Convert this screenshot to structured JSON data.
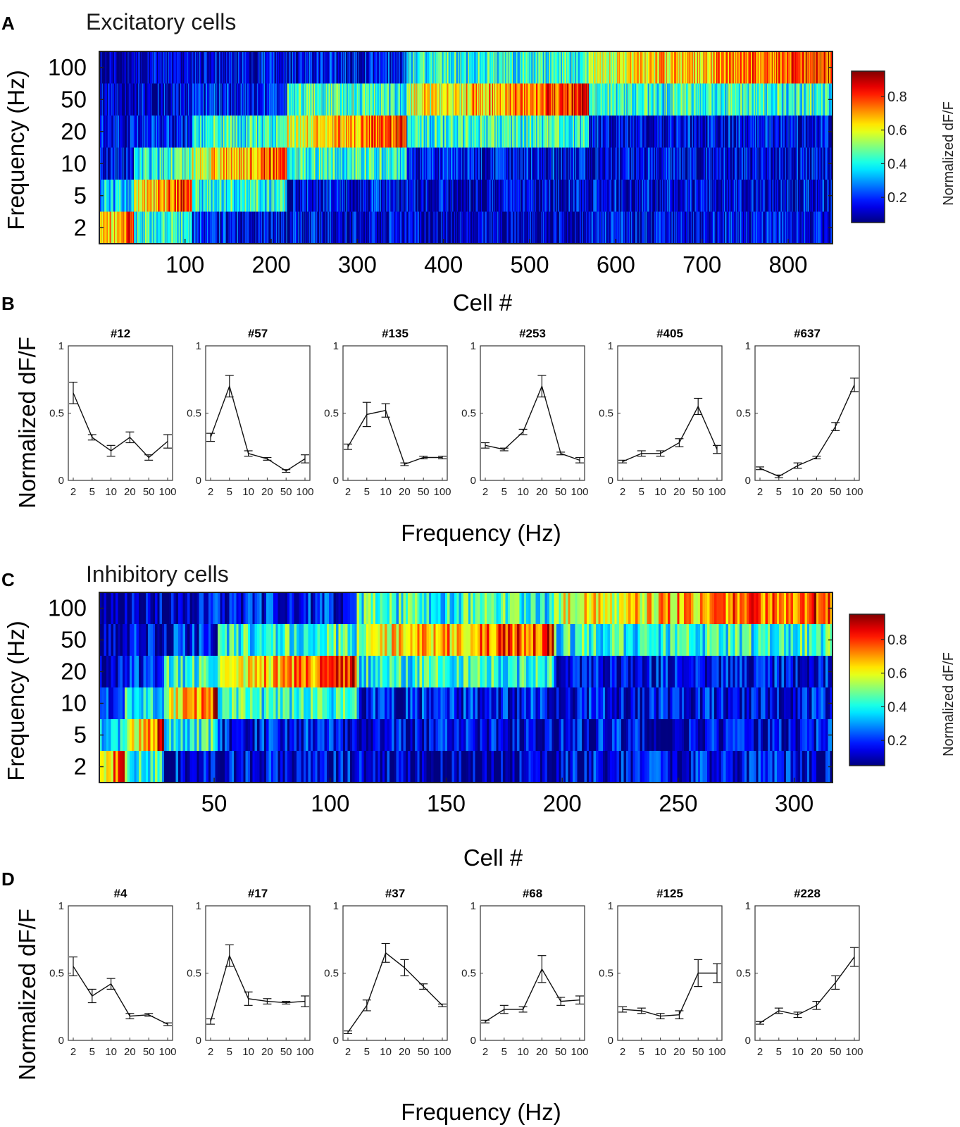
{
  "figure": {
    "panel_labels": [
      "A",
      "B",
      "C",
      "D"
    ]
  },
  "chart_data": [
    {
      "type": "heatmap",
      "panel": "A",
      "title": "Excitatory cells",
      "xlabel": "Cell #",
      "ylabel": "Frequency (Hz)",
      "n_cells": 851,
      "x_ticks": [
        100,
        200,
        300,
        400,
        500,
        600,
        700,
        800
      ],
      "y_categories": [
        "100",
        "50",
        "20",
        "10",
        "5",
        "2"
      ],
      "colorbar_label": "Normalized dF/F",
      "colorbar_ticks": [
        0.2,
        0.4,
        0.6,
        0.8
      ],
      "clim": [
        0.05,
        0.95
      ],
      "preferred_blocks": [
        {
          "pref": "2",
          "from": 1,
          "to": 40
        },
        {
          "pref": "5",
          "from": 41,
          "to": 108
        },
        {
          "pref": "10",
          "from": 109,
          "to": 218
        },
        {
          "pref": "20",
          "from": 219,
          "to": 357
        },
        {
          "pref": "50",
          "from": 358,
          "to": 568
        },
        {
          "pref": "100",
          "from": 569,
          "to": 851
        }
      ]
    },
    {
      "type": "line",
      "panel": "B",
      "xlabel": "Frequency (Hz)",
      "ylabel": "Normalized dF/F",
      "x_tick_labels": [
        "2",
        "5",
        "10",
        "20",
        "50",
        "100"
      ],
      "y_ticks": [
        "0",
        "0.5",
        "1"
      ],
      "ylim": [
        0,
        1
      ],
      "cells": [
        {
          "title": "#12",
          "values": [
            0.65,
            0.32,
            0.22,
            0.32,
            0.17,
            0.29
          ],
          "errors": [
            0.08,
            0.02,
            0.04,
            0.04,
            0.02,
            0.05
          ]
        },
        {
          "title": "#57",
          "values": [
            0.32,
            0.7,
            0.2,
            0.16,
            0.07,
            0.16
          ],
          "errors": [
            0.03,
            0.08,
            0.02,
            0.01,
            0.01,
            0.03
          ]
        },
        {
          "title": "#135",
          "values": [
            0.25,
            0.49,
            0.52,
            0.12,
            0.17,
            0.17
          ],
          "errors": [
            0.02,
            0.09,
            0.05,
            0.01,
            0.01,
            0.01
          ]
        },
        {
          "title": "#253",
          "values": [
            0.26,
            0.23,
            0.36,
            0.7,
            0.2,
            0.15
          ],
          "errors": [
            0.02,
            0.01,
            0.02,
            0.08,
            0.01,
            0.02
          ]
        },
        {
          "title": "#405",
          "values": [
            0.14,
            0.2,
            0.2,
            0.28,
            0.55,
            0.23
          ],
          "errors": [
            0.01,
            0.02,
            0.02,
            0.03,
            0.06,
            0.03
          ]
        },
        {
          "title": "#637",
          "values": [
            0.09,
            0.03,
            0.11,
            0.17,
            0.4,
            0.71
          ],
          "errors": [
            0.01,
            0.01,
            0.02,
            0.01,
            0.03,
            0.05
          ]
        }
      ]
    },
    {
      "type": "heatmap",
      "panel": "C",
      "title": "Inhibitory cells",
      "xlabel": "Cell #",
      "ylabel": "Frequency (Hz)",
      "n_cells": 316,
      "x_ticks": [
        50,
        100,
        150,
        200,
        250,
        300
      ],
      "y_categories": [
        "100",
        "50",
        "20",
        "10",
        "5",
        "2"
      ],
      "colorbar_label": "Normalized dF/F",
      "colorbar_ticks": [
        0.2,
        0.4,
        0.6,
        0.8
      ],
      "clim": [
        0.05,
        0.95
      ],
      "preferred_blocks": [
        {
          "pref": "2",
          "from": 1,
          "to": 11
        },
        {
          "pref": "5",
          "from": 12,
          "to": 28
        },
        {
          "pref": "10",
          "from": 29,
          "to": 51
        },
        {
          "pref": "20",
          "from": 52,
          "to": 111
        },
        {
          "pref": "50",
          "from": 112,
          "to": 196
        },
        {
          "pref": "100",
          "from": 197,
          "to": 316
        }
      ]
    },
    {
      "type": "line",
      "panel": "D",
      "xlabel": "Frequency (Hz)",
      "ylabel": "Normalized dF/F",
      "x_tick_labels": [
        "2",
        "5",
        "10",
        "20",
        "50",
        "100"
      ],
      "y_ticks": [
        "0",
        "0.5",
        "1"
      ],
      "ylim": [
        0,
        1
      ],
      "cells": [
        {
          "title": "#4",
          "values": [
            0.55,
            0.33,
            0.42,
            0.18,
            0.19,
            0.12
          ],
          "errors": [
            0.07,
            0.05,
            0.04,
            0.02,
            0.01,
            0.01
          ]
        },
        {
          "title": "#17",
          "values": [
            0.14,
            0.63,
            0.31,
            0.29,
            0.28,
            0.29
          ],
          "errors": [
            0.02,
            0.08,
            0.05,
            0.02,
            0.01,
            0.04
          ]
        },
        {
          "title": "#37",
          "values": [
            0.06,
            0.26,
            0.65,
            0.54,
            0.4,
            0.26
          ],
          "errors": [
            0.01,
            0.04,
            0.07,
            0.06,
            0.02,
            0.01
          ]
        },
        {
          "title": "#68",
          "values": [
            0.14,
            0.23,
            0.23,
            0.53,
            0.29,
            0.3
          ],
          "errors": [
            0.01,
            0.03,
            0.02,
            0.1,
            0.03,
            0.03
          ]
        },
        {
          "title": "#125",
          "values": [
            0.23,
            0.22,
            0.18,
            0.19,
            0.5,
            0.5
          ],
          "errors": [
            0.02,
            0.02,
            0.02,
            0.03,
            0.1,
            0.07
          ]
        },
        {
          "title": "#228",
          "values": [
            0.13,
            0.22,
            0.19,
            0.26,
            0.43,
            0.62
          ],
          "errors": [
            0.01,
            0.02,
            0.02,
            0.03,
            0.05,
            0.07
          ]
        }
      ]
    }
  ]
}
